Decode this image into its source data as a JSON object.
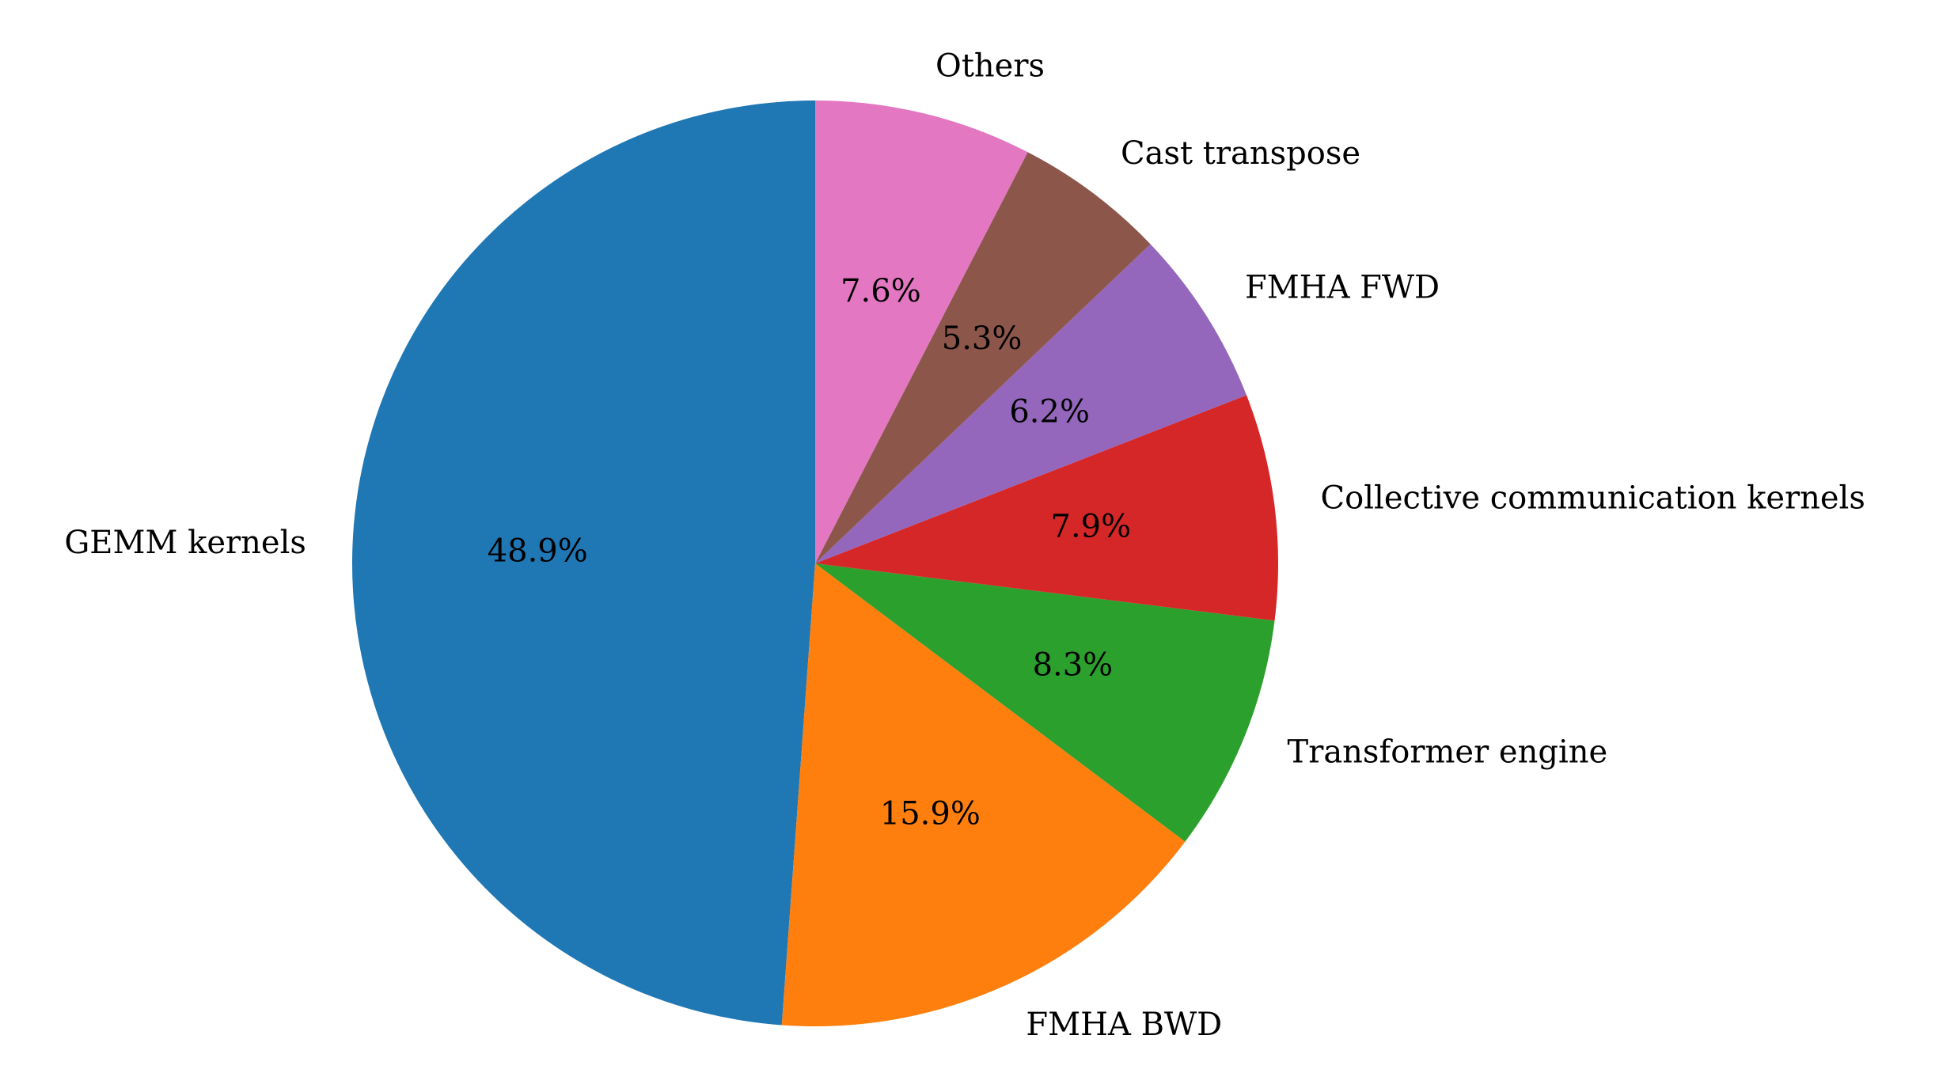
{
  "chart_data": {
    "type": "pie",
    "categories": [
      "GEMM kernels",
      "FMHA BWD",
      "Transformer engine",
      "Collective communication kernels",
      "FMHA FWD",
      "Cast transpose",
      "Others"
    ],
    "values": [
      48.9,
      15.9,
      8.3,
      7.9,
      6.2,
      5.3,
      7.6
    ],
    "value_labels": [
      "48.9%",
      "15.9%",
      "8.3%",
      "7.9%",
      "6.2%",
      "5.3%",
      "7.6%"
    ],
    "colors": [
      "#1f77b4",
      "#ff7f0e",
      "#2ca02c",
      "#d62728",
      "#9467bd",
      "#8c564b",
      "#e377c2"
    ]
  }
}
